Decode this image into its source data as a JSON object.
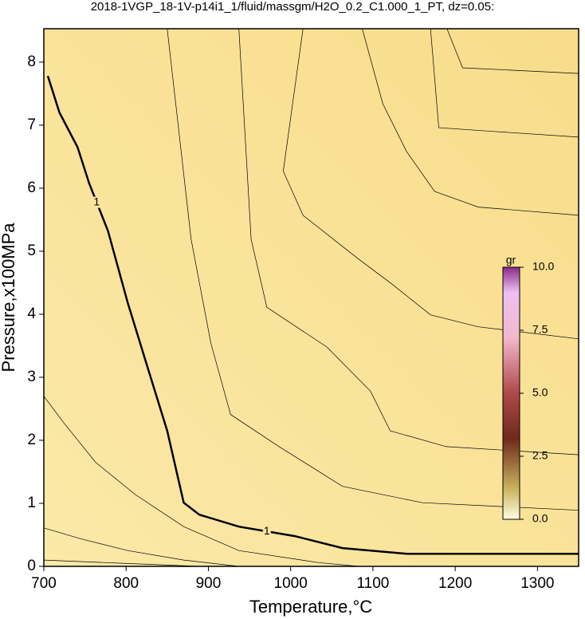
{
  "chart_data": {
    "type": "contour",
    "title": "2018-1VGP_18-1V-p14i1_1/fluid/massgm/H2O_0.2_C1.000_1_PT, dz=0.05:",
    "xlabel": "Temperature,°C",
    "ylabel": "Pressure,x100MPa",
    "xlim": [
      700,
      1350
    ],
    "ylim": [
      0,
      8.53
    ],
    "xticks": [
      700,
      800,
      900,
      1000,
      1100,
      1200,
      1300
    ],
    "yticks": [
      0,
      1,
      2,
      3,
      4,
      5,
      6,
      7,
      8
    ],
    "contours": [
      {
        "label": "1",
        "bold": true,
        "x": [
          704.8,
          719,
          741,
          755,
          778,
          802,
          826,
          850,
          870,
          889,
          937,
          1005,
          1063,
          1141,
          1350
        ],
        "y": [
          7.78,
          7.2,
          6.65,
          6.08,
          5.32,
          4.18,
          3.16,
          2.15,
          1.01,
          0.82,
          0.63,
          0.48,
          0.29,
          0.2,
          0.2
        ]
      },
      {
        "x": [
          850,
          879,
          903,
          927,
          986,
          1063,
          1160,
          1350
        ],
        "y": [
          8.53,
          5.19,
          3.54,
          2.41,
          1.9,
          1.27,
          1.01,
          0.89
        ]
      },
      {
        "x": [
          937,
          952,
          971,
          1044,
          1097,
          1121,
          1189,
          1350
        ],
        "y": [
          8.53,
          5.19,
          4.11,
          3.48,
          2.78,
          2.15,
          1.9,
          1.77
        ]
      },
      {
        "x": [
          1015,
          991,
          1015,
          1083,
          1122,
          1170,
          1228,
          1350
        ],
        "y": [
          8.53,
          6.27,
          5.57,
          4.87,
          4.49,
          3.99,
          3.8,
          3.61
        ]
      },
      {
        "x": [
          1087,
          1112,
          1141,
          1175,
          1228,
          1350
        ],
        "y": [
          8.53,
          7.34,
          6.58,
          5.95,
          5.7,
          5.57
        ]
      },
      {
        "x": [
          1170,
          1180,
          1247,
          1350
        ],
        "y": [
          8.53,
          6.96,
          6.9,
          6.81
        ]
      },
      {
        "x": [
          1190,
          1209,
          1350
        ],
        "y": [
          8.53,
          7.91,
          7.82
        ]
      },
      {
        "x": [
          700,
          724,
          763,
          811,
          870,
          937,
          1034,
          1083
        ],
        "y": [
          2.7,
          2.28,
          1.65,
          1.14,
          0.63,
          0.25,
          0.06,
          0
        ]
      },
      {
        "x": [
          700,
          744,
          802,
          870,
          937
        ],
        "y": [
          0.61,
          0.44,
          0.25,
          0.1,
          0
        ]
      },
      {
        "x": [
          700,
          792,
          889
        ],
        "y": [
          0.1,
          0.05,
          0
        ]
      }
    ],
    "colorbar": {
      "label": "gr",
      "lim": [
        0,
        10
      ],
      "ticks": [
        {
          "value": 0,
          "label": "0.0"
        },
        {
          "value": 2.5,
          "label": "2.5"
        },
        {
          "value": 5,
          "label": "5.0"
        },
        {
          "value": 7.5,
          "label": "7.5"
        },
        {
          "value": 10,
          "label": "10.0"
        }
      ]
    }
  }
}
